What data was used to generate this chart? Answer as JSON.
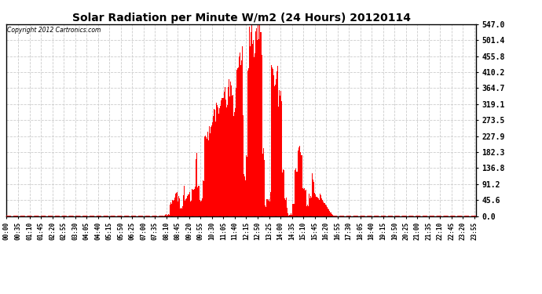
{
  "title": "Solar Radiation per Minute W/m2 (24 Hours) 20120114",
  "copyright": "Copyright 2012 Cartronics.com",
  "bar_color": "#FF0000",
  "background_color": "#FFFFFF",
  "grid_color": "#CCCCCC",
  "ymin": 0.0,
  "ymax": 547.0,
  "yticks": [
    0.0,
    45.6,
    91.2,
    136.8,
    182.3,
    227.9,
    273.5,
    319.1,
    364.7,
    410.2,
    455.8,
    501.4,
    547.0
  ],
  "ytick_labels": [
    "0.0",
    "45.6",
    "91.2",
    "136.8",
    "182.3",
    "227.9",
    "273.5",
    "319.1",
    "364.7",
    "410.2",
    "455.8",
    "501.4",
    "547.0"
  ],
  "total_minutes": 1440,
  "xtick_interval": 35,
  "sunrise_min": 480,
  "sunset_min": 1005,
  "peak_time_min": 770,
  "peak_value": 547.0,
  "title_fontsize": 10,
  "ytick_fontsize": 7,
  "xtick_fontsize": 5.5
}
